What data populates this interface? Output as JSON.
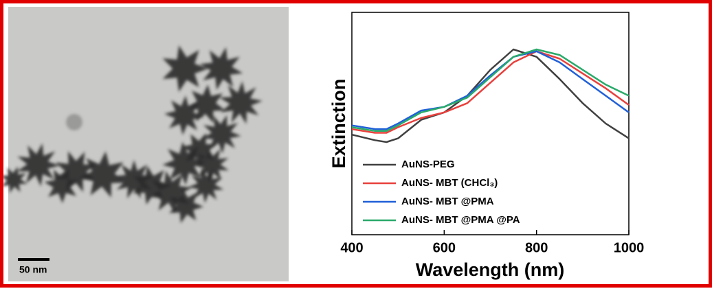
{
  "scale_bar_label": "50 nm",
  "chart_data": {
    "type": "line",
    "x_label": "Wavelength (nm)",
    "y_label": "Extinction",
    "x": [
      400,
      450,
      475,
      500,
      550,
      600,
      650,
      700,
      750,
      800,
      850,
      900,
      950,
      1000
    ],
    "xlim": [
      400,
      1000
    ],
    "xticks": [
      400,
      600,
      800,
      1000
    ],
    "ylim": [
      0,
      1.2
    ],
    "series": [
      {
        "name": "AuNS-PEG",
        "color": "#404040",
        "values": [
          0.54,
          0.51,
          0.5,
          0.52,
          0.62,
          0.66,
          0.75,
          0.89,
          1.0,
          0.96,
          0.84,
          0.71,
          0.6,
          0.52
        ]
      },
      {
        "name": "AuNS- MBT (CHCl₃)",
        "color": "#e8403c",
        "values": [
          0.57,
          0.55,
          0.55,
          0.58,
          0.63,
          0.66,
          0.71,
          0.82,
          0.93,
          0.99,
          0.95,
          0.87,
          0.79,
          0.7
        ]
      },
      {
        "name": "AuNS- MBT @PMA",
        "color": "#2060d8",
        "values": [
          0.59,
          0.57,
          0.57,
          0.6,
          0.67,
          0.69,
          0.75,
          0.86,
          0.96,
          0.99,
          0.93,
          0.84,
          0.75,
          0.66
        ]
      },
      {
        "name": "AuNS- MBT @PMA @PA",
        "color": "#2aaa6a",
        "values": [
          0.58,
          0.56,
          0.56,
          0.59,
          0.66,
          0.69,
          0.74,
          0.85,
          0.96,
          1.0,
          0.97,
          0.89,
          0.81,
          0.75
        ]
      }
    ],
    "legend": "lower-left"
  }
}
